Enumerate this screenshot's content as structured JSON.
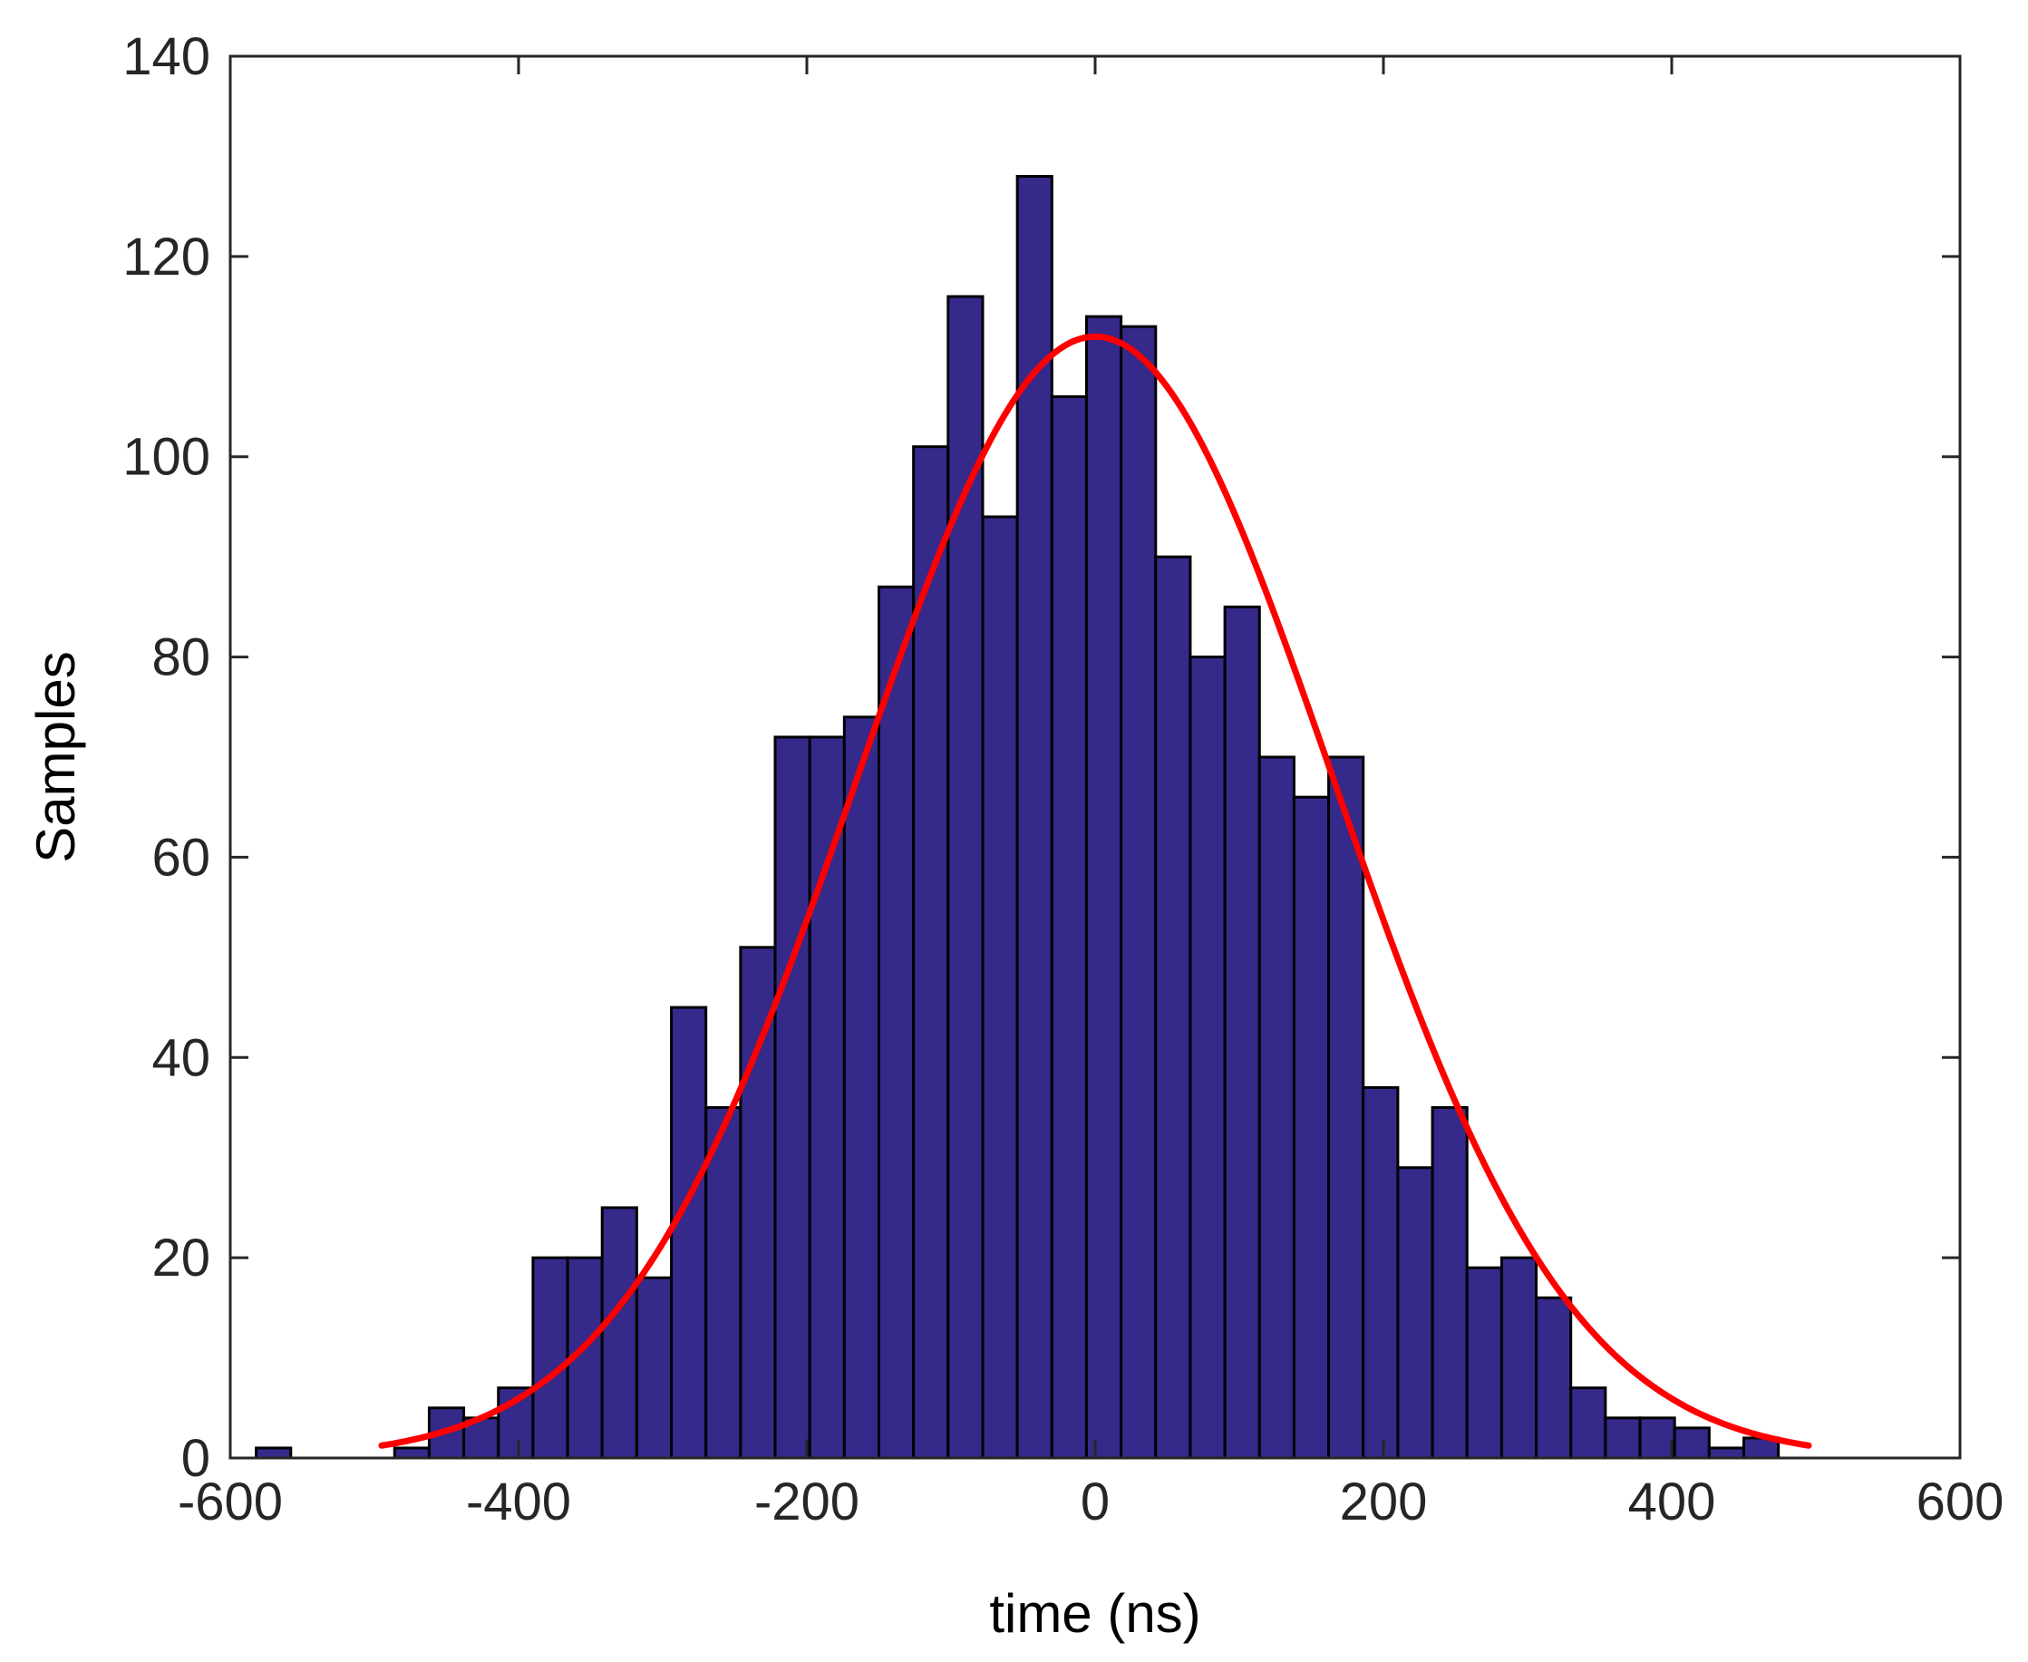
{
  "chart_data": {
    "type": "bar",
    "subtype": "histogram",
    "title": "",
    "xlabel": "time (ns)",
    "ylabel": "Samples",
    "xlim": [
      -600,
      600
    ],
    "ylim": [
      0,
      140
    ],
    "xticks": [
      -600,
      -400,
      -200,
      0,
      200,
      400,
      600
    ],
    "yticks": [
      0,
      20,
      40,
      60,
      80,
      100,
      120,
      140
    ],
    "grid": false,
    "bin_width": 24,
    "bin_centers": [
      -570,
      -474,
      -450,
      -426,
      -402,
      -378,
      -354,
      -330,
      -306,
      -282,
      -258,
      -234,
      -210,
      -186,
      -162,
      -138,
      -114,
      -90,
      -66,
      -42,
      -18,
      6,
      30,
      54,
      78,
      102,
      126,
      150,
      174,
      198,
      222,
      246,
      270,
      294,
      318,
      342,
      366,
      390,
      414,
      438,
      462,
      486
    ],
    "values": [
      1,
      1,
      5,
      4,
      7,
      20,
      20,
      25,
      18,
      45,
      35,
      51,
      72,
      72,
      74,
      87,
      101,
      116,
      94,
      128,
      106,
      114,
      113,
      90,
      80,
      85,
      70,
      66,
      70,
      37,
      29,
      35,
      19,
      20,
      16,
      7,
      4,
      4,
      3,
      1,
      2,
      0
    ],
    "fit": {
      "type": "gaussian",
      "mean": 0,
      "sigma": 165,
      "amplitude": 112,
      "x_range": [
        -495,
        495
      ]
    },
    "colors": {
      "bars": "#35298a",
      "bar_edge": "#000000",
      "fit_line": "#ff0000",
      "axes": "#262626"
    }
  }
}
